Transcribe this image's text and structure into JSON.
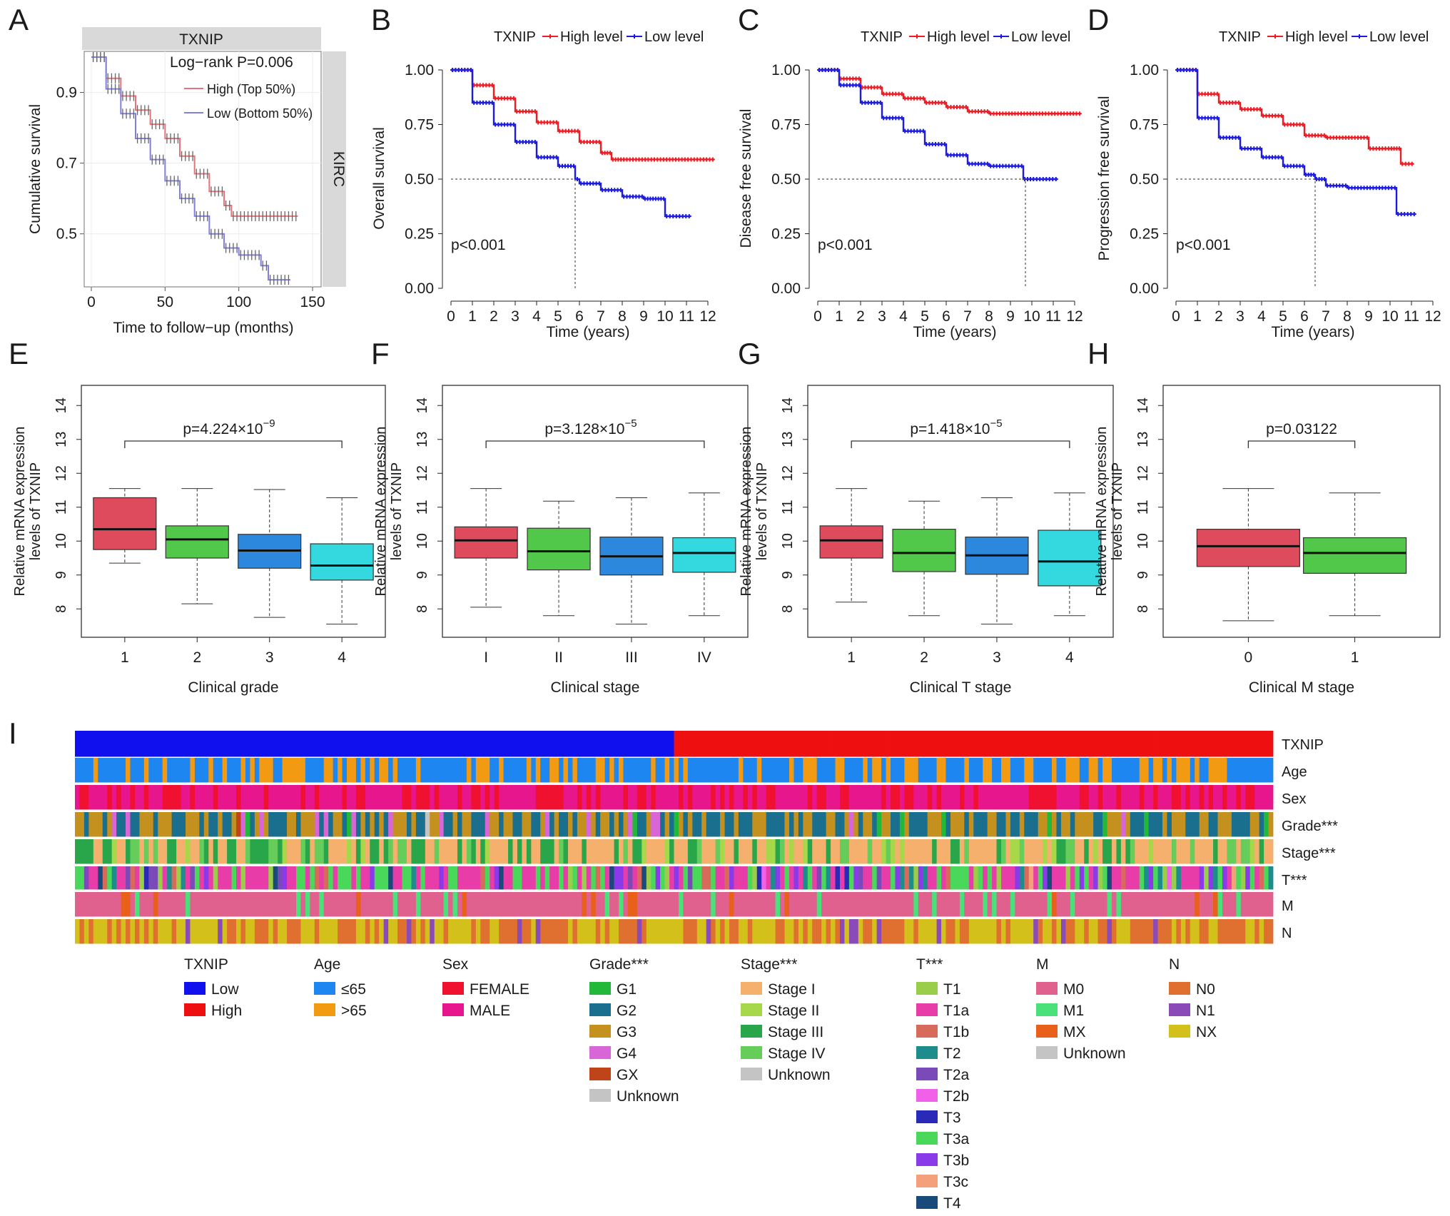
{
  "figure": {
    "panel_letters": [
      "A",
      "B",
      "C",
      "D",
      "E",
      "F",
      "G",
      "H",
      "I"
    ]
  },
  "chart_data": [
    {
      "panel": "A",
      "type": "line",
      "strip_top": "TXNIP",
      "strip_right": "KIRC",
      "annotation": "Log−rank P=0.006",
      "xlabel": "Time to follow−up (months)",
      "ylabel": "Cumulative survival",
      "xlim": [
        0,
        150
      ],
      "ylim": [
        0.35,
        1.0
      ],
      "xticks": [
        0,
        50,
        100,
        150
      ],
      "yticks": [
        0.5,
        0.7,
        0.9
      ],
      "legend_placement": "top-right",
      "series": [
        {
          "name": "High (Top 50%)",
          "color": "#e8727a",
          "x": [
            0,
            10,
            20,
            30,
            40,
            50,
            60,
            70,
            80,
            90,
            95,
            100,
            110,
            120,
            130,
            140
          ],
          "y": [
            1.0,
            0.94,
            0.89,
            0.85,
            0.81,
            0.77,
            0.72,
            0.67,
            0.62,
            0.58,
            0.55,
            0.55,
            0.55,
            0.55,
            0.55,
            0.55
          ]
        },
        {
          "name": "Low (Bottom 50%)",
          "color": "#8080e0",
          "x": [
            0,
            10,
            20,
            30,
            40,
            50,
            60,
            70,
            80,
            90,
            100,
            110,
            115,
            120,
            125,
            135
          ],
          "y": [
            1.0,
            0.91,
            0.84,
            0.77,
            0.71,
            0.65,
            0.6,
            0.55,
            0.5,
            0.46,
            0.44,
            0.44,
            0.41,
            0.37,
            0.37,
            0.37
          ]
        }
      ]
    },
    {
      "panel": "B",
      "type": "line",
      "legend_title": "TXNIP",
      "annotation": "p<0.001",
      "xlabel": "Time (years)",
      "ylabel": "Overall survival",
      "xlim": [
        0,
        12
      ],
      "ylim": [
        0,
        1
      ],
      "xticks": [
        0,
        1,
        2,
        3,
        4,
        5,
        6,
        7,
        8,
        9,
        10,
        11,
        12
      ],
      "yticks": [
        "0.00",
        "0.25",
        "0.50",
        "0.75",
        "1.00"
      ],
      "median_x": 5.8,
      "series": [
        {
          "name": "High level",
          "color": "#ee1c25",
          "x": [
            0,
            1,
            2,
            3,
            4,
            5,
            6,
            7,
            7.5,
            8,
            9,
            10,
            11,
            12.3
          ],
          "y": [
            1.0,
            0.93,
            0.87,
            0.81,
            0.76,
            0.72,
            0.67,
            0.62,
            0.59,
            0.59,
            0.59,
            0.59,
            0.59,
            0.59
          ]
        },
        {
          "name": "Low level",
          "color": "#1c1ce0",
          "x": [
            0,
            1,
            2,
            3,
            4,
            5,
            5.8,
            6,
            7,
            8,
            9,
            9.5,
            10,
            11.2
          ],
          "y": [
            1.0,
            0.85,
            0.75,
            0.67,
            0.6,
            0.56,
            0.5,
            0.48,
            0.45,
            0.42,
            0.41,
            0.41,
            0.33,
            0.33
          ]
        }
      ]
    },
    {
      "panel": "C",
      "type": "line",
      "legend_title": "TXNIP",
      "annotation": "p<0.001",
      "xlabel": "Time (years)",
      "ylabel": "Disease free survival",
      "xlim": [
        0,
        12
      ],
      "ylim": [
        0,
        1
      ],
      "xticks": [
        0,
        1,
        2,
        3,
        4,
        5,
        6,
        7,
        8,
        9,
        10,
        11,
        12
      ],
      "yticks": [
        "0.00",
        "0.25",
        "0.50",
        "0.75",
        "1.00"
      ],
      "median_x": 9.7,
      "series": [
        {
          "name": "High level",
          "color": "#ee1c25",
          "x": [
            0,
            1,
            2,
            3,
            4,
            5,
            6,
            7,
            8,
            9,
            10,
            11,
            12.3
          ],
          "y": [
            1.0,
            0.96,
            0.92,
            0.89,
            0.87,
            0.85,
            0.83,
            0.81,
            0.8,
            0.8,
            0.8,
            0.8,
            0.8
          ]
        },
        {
          "name": "Low level",
          "color": "#1c1ce0",
          "x": [
            0,
            1,
            2,
            3,
            4,
            5,
            6,
            7,
            8,
            9,
            9.6,
            10,
            11.2
          ],
          "y": [
            1.0,
            0.93,
            0.85,
            0.78,
            0.72,
            0.66,
            0.61,
            0.57,
            0.56,
            0.56,
            0.5,
            0.5,
            0.5
          ]
        }
      ]
    },
    {
      "panel": "D",
      "type": "line",
      "legend_title": "TXNIP",
      "annotation": "p<0.001",
      "xlabel": "Time (years)",
      "ylabel": "Progression free survival",
      "xlim": [
        0,
        12
      ],
      "ylim": [
        0,
        1
      ],
      "xticks": [
        0,
        1,
        2,
        3,
        4,
        5,
        6,
        7,
        8,
        9,
        10,
        11,
        12
      ],
      "yticks": [
        "0.00",
        "0.25",
        "0.50",
        "0.75",
        "1.00"
      ],
      "median_x": 6.5,
      "series": [
        {
          "name": "High level",
          "color": "#ee1c25",
          "x": [
            0,
            1,
            2,
            3,
            4,
            5,
            6,
            7,
            8,
            9,
            10,
            10.5,
            11.1
          ],
          "y": [
            1.0,
            0.89,
            0.85,
            0.82,
            0.79,
            0.75,
            0.7,
            0.69,
            0.69,
            0.64,
            0.64,
            0.57,
            0.57
          ]
        },
        {
          "name": "Low level",
          "color": "#1c1ce0",
          "x": [
            0,
            1,
            2,
            3,
            4,
            5,
            6,
            6.5,
            7,
            8,
            9,
            10,
            10.3,
            11.2
          ],
          "y": [
            1.0,
            0.78,
            0.69,
            0.64,
            0.6,
            0.56,
            0.52,
            0.5,
            0.47,
            0.46,
            0.46,
            0.46,
            0.34,
            0.34
          ]
        }
      ]
    },
    {
      "panel": "E",
      "type": "box",
      "xlabel": "Clinical grade",
      "ylabel_lines": [
        "Relative mRNA expression",
        "levels of TXNIP"
      ],
      "ylim": [
        7.5,
        14.3
      ],
      "yticks": [
        8,
        9,
        10,
        11,
        12,
        13,
        14
      ],
      "p_base": "p=4.224×10",
      "p_exp": "−9",
      "bracket": [
        0,
        3
      ],
      "categories": [
        "1",
        "2",
        "3",
        "4"
      ],
      "colors": [
        "#dd4b5c",
        "#52c84a",
        "#2c88dd",
        "#33d9df"
      ],
      "boxes": [
        {
          "min": 9.35,
          "q1": 9.75,
          "median": 10.35,
          "q3": 11.28,
          "max": 11.55
        },
        {
          "min": 8.15,
          "q1": 9.5,
          "median": 10.05,
          "q3": 10.45,
          "max": 11.55
        },
        {
          "min": 7.75,
          "q1": 9.2,
          "median": 9.72,
          "q3": 10.2,
          "max": 11.52
        },
        {
          "min": 7.55,
          "q1": 8.85,
          "median": 9.28,
          "q3": 9.92,
          "max": 11.28
        }
      ]
    },
    {
      "panel": "F",
      "type": "box",
      "xlabel": "Clinical stage",
      "ylabel_lines": [
        "Relative mRNA expression",
        "levels of TXNIP"
      ],
      "ylim": [
        7.5,
        14.3
      ],
      "yticks": [
        8,
        9,
        10,
        11,
        12,
        13,
        14
      ],
      "p_base": "p=3.128×10",
      "p_exp": "−5",
      "bracket": [
        0,
        3
      ],
      "categories": [
        "I",
        "II",
        "III",
        "IV"
      ],
      "colors": [
        "#dd4b5c",
        "#52c84a",
        "#2c88dd",
        "#33d9df"
      ],
      "boxes": [
        {
          "min": 8.05,
          "q1": 9.5,
          "median": 10.02,
          "q3": 10.42,
          "max": 11.55
        },
        {
          "min": 7.8,
          "q1": 9.15,
          "median": 9.7,
          "q3": 10.38,
          "max": 11.18
        },
        {
          "min": 7.55,
          "q1": 9.0,
          "median": 9.55,
          "q3": 10.12,
          "max": 11.28
        },
        {
          "min": 7.8,
          "q1": 9.08,
          "median": 9.65,
          "q3": 10.1,
          "max": 11.42
        }
      ]
    },
    {
      "panel": "G",
      "type": "box",
      "xlabel": "Clinical T stage",
      "ylabel_lines": [
        "Relative mRNA expression",
        "levels of TXNIP"
      ],
      "ylim": [
        7.5,
        14.3
      ],
      "yticks": [
        8,
        9,
        10,
        11,
        12,
        13,
        14
      ],
      "p_base": "p=1.418×10",
      "p_exp": "−5",
      "bracket": [
        0,
        3
      ],
      "categories": [
        "1",
        "2",
        "3",
        "4"
      ],
      "colors": [
        "#dd4b5c",
        "#52c84a",
        "#2c88dd",
        "#33d9df"
      ],
      "boxes": [
        {
          "min": 8.2,
          "q1": 9.5,
          "median": 10.02,
          "q3": 10.45,
          "max": 11.55
        },
        {
          "min": 7.8,
          "q1": 9.1,
          "median": 9.65,
          "q3": 10.35,
          "max": 11.18
        },
        {
          "min": 7.55,
          "q1": 9.02,
          "median": 9.58,
          "q3": 10.12,
          "max": 11.28
        },
        {
          "min": 7.8,
          "q1": 8.68,
          "median": 9.4,
          "q3": 10.32,
          "max": 11.42
        }
      ]
    },
    {
      "panel": "H",
      "type": "box",
      "xlabel": "Clinical M stage",
      "ylabel_lines": [
        "Relative mRNA expression",
        "levels of TXNIP"
      ],
      "ylim": [
        7.5,
        14.3
      ],
      "yticks": [
        8,
        9,
        10,
        11,
        12,
        13,
        14
      ],
      "p_base": "p=0.03122",
      "p_exp": "",
      "bracket": [
        0,
        1
      ],
      "categories": [
        "0",
        "1"
      ],
      "colors": [
        "#dd4b5c",
        "#52c84a"
      ],
      "boxes": [
        {
          "min": 7.65,
          "q1": 9.25,
          "median": 9.85,
          "q3": 10.35,
          "max": 11.55
        },
        {
          "min": 7.8,
          "q1": 9.05,
          "median": 9.65,
          "q3": 10.1,
          "max": 11.42
        }
      ]
    },
    {
      "panel": "I",
      "type": "heatmap",
      "rows": [
        "TXNIP",
        "Age",
        "Sex",
        "Grade***",
        "Stage***",
        "T***",
        "M",
        "N"
      ],
      "legend": [
        {
          "title": "TXNIP",
          "items": [
            {
              "label": "Low",
              "color": "#1010ee"
            },
            {
              "label": "High",
              "color": "#ee1010"
            }
          ]
        },
        {
          "title": "Age",
          "items": [
            {
              "label": "≤65",
              "color": "#1e86f0"
            },
            {
              "label": ">65",
              "color": "#f29a12"
            }
          ]
        },
        {
          "title": "Sex",
          "items": [
            {
              "label": "FEMALE",
              "color": "#f01030"
            },
            {
              "label": "MALE",
              "color": "#e8168c"
            }
          ]
        },
        {
          "title": "Grade***",
          "items": [
            {
              "label": "G1",
              "color": "#22b83a"
            },
            {
              "label": "G2",
              "color": "#1a6e8e"
            },
            {
              "label": "G3",
              "color": "#c4901e"
            },
            {
              "label": "G4",
              "color": "#d966d6"
            },
            {
              "label": "GX",
              "color": "#c0441a"
            },
            {
              "label": "Unknown",
              "color": "#c4c4c4"
            }
          ]
        },
        {
          "title": "Stage***",
          "items": [
            {
              "label": "Stage I",
              "color": "#f4b06c"
            },
            {
              "label": "Stage II",
              "color": "#a6d84a"
            },
            {
              "label": "Stage III",
              "color": "#2aa64a"
            },
            {
              "label": "Stage IV",
              "color": "#66cc5a"
            },
            {
              "label": "Unknown",
              "color": "#c4c4c4"
            }
          ]
        },
        {
          "title": "T***",
          "items": [
            {
              "label": "T1",
              "color": "#9acd4a"
            },
            {
              "label": "T1a",
              "color": "#e83ca8"
            },
            {
              "label": "T1b",
              "color": "#d86a5c"
            },
            {
              "label": "T2",
              "color": "#1c8c8c"
            },
            {
              "label": "T2a",
              "color": "#7a4ab8"
            },
            {
              "label": "T2b",
              "color": "#f060e8"
            },
            {
              "label": "T3",
              "color": "#2a2ab8"
            },
            {
              "label": "T3a",
              "color": "#4ad85a"
            },
            {
              "label": "T3b",
              "color": "#8a3ae8"
            },
            {
              "label": "T3c",
              "color": "#f4a07a"
            },
            {
              "label": "T4",
              "color": "#1a4a7a"
            }
          ]
        },
        {
          "title": "M",
          "items": [
            {
              "label": "M0",
              "color": "#e0608e"
            },
            {
              "label": "M1",
              "color": "#4ae07a"
            },
            {
              "label": "MX",
              "color": "#e8601a"
            },
            {
              "label": "Unknown",
              "color": "#c4c4c4"
            }
          ]
        },
        {
          "title": "N",
          "items": [
            {
              "label": "N0",
              "color": "#e07030"
            },
            {
              "label": "N1",
              "color": "#8a4ab8"
            },
            {
              "label": "NX",
              "color": "#d4c01a"
            }
          ]
        }
      ]
    }
  ]
}
